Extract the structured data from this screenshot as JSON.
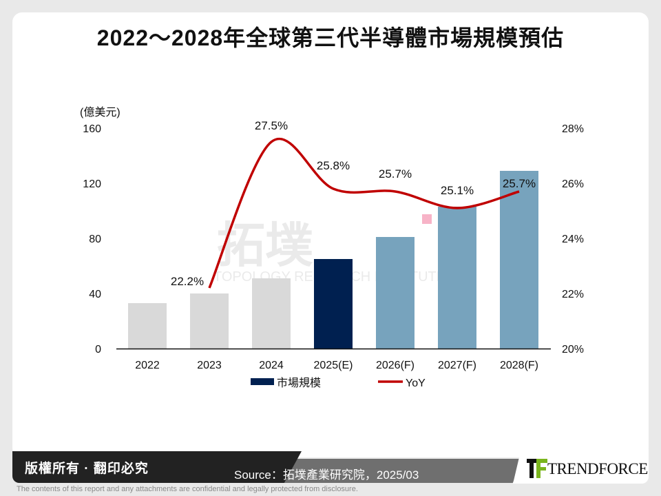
{
  "title": "2022～2028年全球第三代半導體市場規模預估",
  "chart_data": {
    "type": "bar+line",
    "title": "2022～2028年全球第三代半導體市場規模預估",
    "categories": [
      "2022",
      "2023",
      "2024",
      "2025(E)",
      "2026(F)",
      "2027(F)",
      "2028(F)"
    ],
    "ylabel_left": "(億美元)",
    "ylim_left": [
      0,
      160
    ],
    "yticks_left": [
      "0",
      "40",
      "80",
      "120",
      "160"
    ],
    "ylim_right": [
      20,
      28
    ],
    "yticks_right": [
      "20%",
      "22%",
      "24%",
      "26%",
      "28%"
    ],
    "grid": false,
    "legend_position": "bottom",
    "series": [
      {
        "name": "市場規模",
        "type": "bar",
        "values": [
          33,
          40,
          51,
          65,
          81,
          103,
          129
        ],
        "colors": [
          "#d9d9d9",
          "#d9d9d9",
          "#d9d9d9",
          "#002050",
          "#77a3bd",
          "#77a3bd",
          "#77a3bd"
        ]
      },
      {
        "name": "YoY",
        "type": "line",
        "color": "#c00000",
        "values": [
          null,
          22.2,
          27.5,
          25.8,
          25.7,
          25.1,
          25.7
        ],
        "labels": [
          null,
          "22.2%",
          "27.5%",
          "25.8%",
          "25.7%",
          "25.1%",
          "25.7%"
        ]
      }
    ],
    "legend_colors": {
      "bar": "#002050",
      "line": "#c00000"
    }
  },
  "watermark": "拓墣 TRI TOPOLOGY RESEARCH INSTITUTE",
  "footer": {
    "copyright": "版權所有 · 翻印必究",
    "source": "Source：拓墣產業研究院，2025/03",
    "logo": "TRENDFORCE",
    "disclaimer": "The contents of this report and any attachments are confidential and legally protected from disclosure."
  }
}
